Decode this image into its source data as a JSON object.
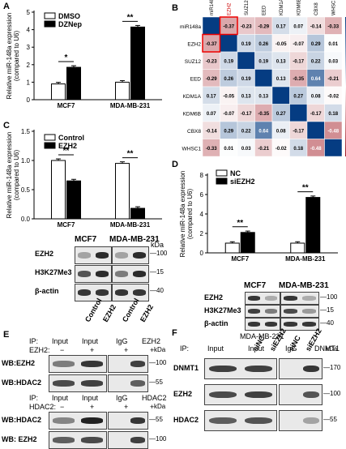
{
  "panels": {
    "A": "A",
    "B": "B",
    "C": "C",
    "D": "D",
    "E": "E",
    "F": "F"
  },
  "chart_data": [
    {
      "id": "A",
      "type": "bar",
      "ylabel": "Relative miR-148a expression (compared to U6)",
      "yticks": [
        "0",
        "1",
        "2",
        "3",
        "4",
        "5"
      ],
      "ylim": [
        0,
        5
      ],
      "categories": [
        "MCF7",
        "MDA-MB-231"
      ],
      "series": [
        {
          "name": "DMSO",
          "values": [
            0.9,
            1.0
          ],
          "color": "#ffffff"
        },
        {
          "name": "DZNep",
          "values": [
            1.85,
            4.15
          ],
          "color": "#000000"
        }
      ],
      "significance": [
        "*",
        "**"
      ]
    },
    {
      "id": "C",
      "type": "bar",
      "ylabel": "Relative miR-148a expression (compared to U6)",
      "yticks": [
        "0.0",
        "0.5",
        "1.0",
        "1.5"
      ],
      "ylim": [
        0,
        1.5
      ],
      "categories": [
        "MCF7",
        "MDA-MB-231"
      ],
      "series": [
        {
          "name": "Control",
          "values": [
            1.0,
            0.95
          ],
          "color": "#ffffff"
        },
        {
          "name": "EZH2",
          "values": [
            0.65,
            0.18
          ],
          "color": "#000000"
        }
      ],
      "significance": [
        "**",
        "**"
      ]
    },
    {
      "id": "D",
      "type": "bar",
      "ylabel": "Relative miR-148a expression (compared to U6)",
      "yticks": [
        "0",
        "2",
        "4",
        "6",
        "8"
      ],
      "ylim": [
        0,
        8
      ],
      "categories": [
        "MCF7",
        "MDA-MB-231"
      ],
      "series": [
        {
          "name": "NC",
          "values": [
            1.0,
            1.0
          ],
          "color": "#ffffff"
        },
        {
          "name": "siEZH2",
          "values": [
            2.1,
            5.7
          ],
          "color": "#000000"
        }
      ],
      "significance": [
        "**",
        "**"
      ]
    },
    {
      "id": "B",
      "type": "heatmap",
      "labels": [
        "miR148a",
        "EZH2",
        "SUZ12",
        "EED",
        "KDM1A",
        "KDM6B",
        "CBX8",
        "WHSC1"
      ],
      "values": [
        [
          1,
          -0.37,
          -0.23,
          -0.29,
          0.17,
          0.07,
          -0.14,
          -0.33
        ],
        [
          -0.37,
          1,
          0.19,
          0.26,
          -0.05,
          -0.07,
          0.29,
          0.01
        ],
        [
          -0.23,
          0.19,
          1,
          0.19,
          0.13,
          -0.17,
          0.22,
          0.03
        ],
        [
          -0.29,
          0.26,
          0.19,
          1,
          0.13,
          -0.35,
          0.64,
          -0.21
        ],
        [
          0.17,
          -0.05,
          0.13,
          0.13,
          1,
          0.27,
          0.08,
          -0.02
        ],
        [
          0.07,
          -0.07,
          -0.17,
          -0.35,
          0.27,
          1,
          -0.17,
          0.18
        ],
        [
          -0.14,
          0.29,
          0.22,
          0.64,
          0.08,
          -0.17,
          1,
          -0.48
        ],
        [
          -0.33,
          0.01,
          0.03,
          -0.21,
          -0.02,
          0.18,
          -0.48,
          1
        ]
      ],
      "scale_ticks": [
        "1",
        "0.8",
        "0.6",
        "0.4",
        "0.2",
        "0",
        "-0.2",
        "-0.4",
        "-0.6",
        "-0.8",
        "-1"
      ]
    }
  ],
  "blot_c": {
    "headers": [
      "MCF7",
      "MDA-MB-231"
    ],
    "kda_title": "kDa",
    "rows": [
      {
        "label": "EZH2",
        "kda": "100"
      },
      {
        "label": "H3K27Me3",
        "kda": "15"
      },
      {
        "label": "β-actin",
        "kda": "40"
      }
    ],
    "lanes": [
      "Control",
      "EZH2",
      "Control",
      "EZH2"
    ]
  },
  "blot_d": {
    "headers": [
      "MCF7",
      "MDA-MB-231"
    ],
    "kda_title": "kDa",
    "rows": [
      {
        "label": "EZH2",
        "kda": "100"
      },
      {
        "label": "H3K27Me3",
        "kda": "15"
      },
      {
        "label": "β-actin",
        "kda": "40"
      }
    ],
    "lanes": [
      "siNC",
      "siEZH2",
      "siNC",
      "siEZH2"
    ]
  },
  "blot_e1": {
    "ip": "IP:",
    "cols": [
      "Input",
      "Input",
      "IgG",
      "EZH2"
    ],
    "treat_label": "EZH2:",
    "treat": [
      "−",
      "+",
      "+",
      "+"
    ],
    "kda_title": "kDa",
    "rows": [
      {
        "label": "WB:EZH2",
        "kda": "100"
      },
      {
        "label": "WB:HDAC2",
        "kda": "55"
      }
    ],
    "kda_extra": "70"
  },
  "blot_e2": {
    "ip": "IP:",
    "cols": [
      "Input",
      "Input",
      "IgG",
      "HDAC2"
    ],
    "treat_label": "HDAC2:",
    "treat": [
      "−",
      "+",
      "+",
      "+"
    ],
    "kda_title": "kDa",
    "rows": [
      {
        "label": "WB:HDAC2",
        "kda": "55"
      },
      {
        "label": "WB: EZH2",
        "kda": "100"
      }
    ],
    "kda_extra": "70"
  },
  "blot_f": {
    "title": "MDA-MB-231",
    "ip": "IP:",
    "cols": [
      "Input",
      "Input",
      "IgG",
      "DNMT1"
    ],
    "kda_title": "kDa",
    "rows": [
      {
        "label": "DNMT1",
        "kda": "170"
      },
      {
        "label": "EZH2",
        "kda": "100"
      },
      {
        "label": "HDAC2",
        "kda": "55"
      }
    ],
    "kda_extra": "70"
  }
}
